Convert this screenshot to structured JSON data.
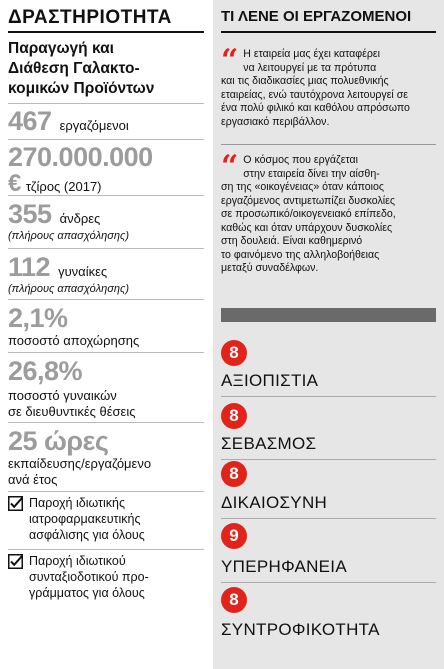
{
  "left": {
    "title": "ΔΡΑΣΤΗΡΙΟΤΗΤΑ",
    "subtitle_lines": [
      "Παραγωγή και",
      "Διάθεση Γαλακτο-",
      "κομικών Προϊόντων"
    ],
    "employees": {
      "value": "467",
      "label": "εργαζόμενοι"
    },
    "revenue": {
      "value": "270.000.000",
      "currency": "€",
      "label": "τζίρος (2017)"
    },
    "men": {
      "value": "355",
      "label": "άνδρες",
      "note": "(πλήρους απασχόλησης)"
    },
    "women": {
      "value": "112",
      "label": "γυναίκες",
      "note": "(πλήρους απασχόλησης)"
    },
    "turnover": {
      "value": "2,1%",
      "label": "ποσοστό αποχώρησης"
    },
    "women_management": {
      "value": "26,8%",
      "label_lines": [
        "ποσοστό γυναικών",
        "σε διευθυντικές θέσεις"
      ]
    },
    "training": {
      "value": "25 ώρες",
      "label_lines": [
        "εκπαίδευσης/εργαζόμενο",
        "ανά έτος"
      ]
    },
    "benefits": [
      {
        "lines": [
          "Παροχή ιδιωτικής",
          "ιατροφαρμακευτικής",
          "ασφάλισης για όλους"
        ]
      },
      {
        "lines": [
          "Παροχή ιδιωτικού",
          "συνταξιοδοτικού προ-",
          "γράμματος για όλους"
        ]
      }
    ]
  },
  "right": {
    "title": "ΤΙ ΛΕΝΕ ΟΙ ΕΡΓΑΖΟΜΕΝΟΙ",
    "quote_mark": "“",
    "quotes": [
      {
        "lines": [
          "Η εταιρεία μας έχει καταφέρει",
          "να λειτουργεί με τα πρότυπα",
          "και τις διαδικασίες μιας πολυεθνικής",
          "εταιρείας, ενώ ταυτόχρονα λειτουργεί σε",
          "ένα πολύ φιλικό και καθόλου απρόσωπο",
          "εργασιακό περιβάλλον."
        ]
      },
      {
        "lines": [
          "Ο κόσμος που εργάζεται",
          "στην εταιρεία δίνει την αίσθη-",
          "ση της «οικογένειας» όταν κάποιος",
          "εργαζόμενος αντιμετωπίζει δυσκολίες",
          "σε προσωπικό/οικογενειακό επίπεδο,",
          "καθώς και όταν υπάρχουν δυσκολίες",
          "στη δουλειά. Είναι καθημερινό",
          "το φαινόμενο της αλληλοβοήθειας",
          "μεταξύ συναδέλφων."
        ]
      }
    ],
    "ratings": [
      {
        "score": "8",
        "label": "ΑΞΙΟΠΙΣΤΙΑ"
      },
      {
        "score": "8",
        "label": "ΣΕΒΑΣΜΟΣ"
      },
      {
        "score": "8",
        "label": "ΔΙΚΑΙΟΣΥΝΗ"
      },
      {
        "score": "9",
        "label": "ΥΠΕΡΗΦΑΝΕΙΑ"
      },
      {
        "score": "8",
        "label": "ΣΥΝΤΡΟΦΙΚΟΤΗΤΑ"
      }
    ],
    "accent_color": "#e2231a"
  }
}
